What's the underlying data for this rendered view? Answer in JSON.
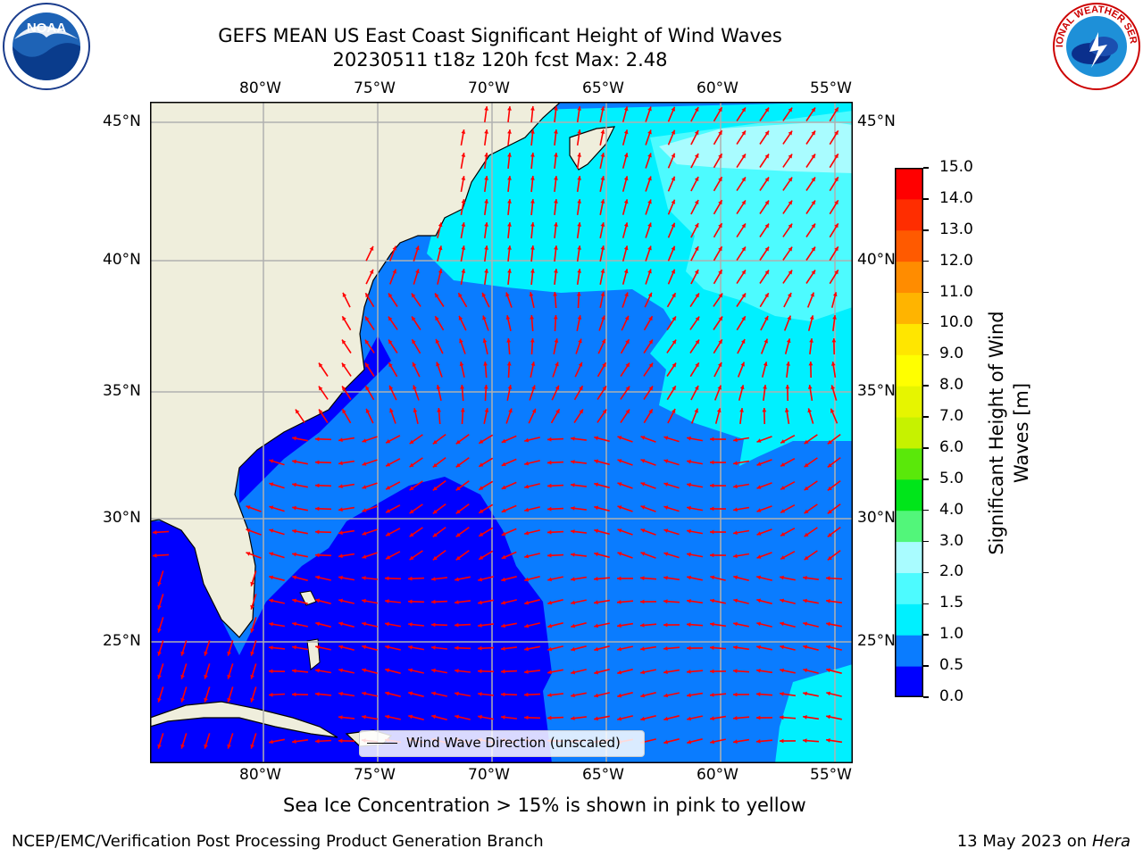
{
  "title": {
    "line1": "GEFS MEAN US East Coast Significant Height of Wind Waves",
    "line2": "20230511 t18z 120h fcst   Max: 2.48"
  },
  "logos": {
    "noaa_text": "NOAA",
    "nws_text": "NATIONAL WEATHER SERVICE"
  },
  "map": {
    "lon_labels": [
      "80°W",
      "75°W",
      "70°W",
      "65°W",
      "60°W",
      "55°W"
    ],
    "lat_labels": [
      "45°N",
      "40°N",
      "35°N",
      "30°N",
      "25°N"
    ],
    "lon_range": [
      "85°W",
      "54°W"
    ],
    "lat_range": [
      "20.5°N",
      "46°N"
    ],
    "legend_label": "Wind Wave Direction (unscaled)",
    "colors": {
      "land": "#efeedc",
      "grid": "#b0b0b0",
      "arrows": "#ff0000"
    }
  },
  "colorbar": {
    "label": "Significant Height of Wind Waves [m]",
    "ticks": [
      "0.0",
      "0.5",
      "1.0",
      "1.5",
      "2.0",
      "3.0",
      "4.0",
      "5.0",
      "6.0",
      "7.0",
      "8.0",
      "9.0",
      "10.0",
      "11.0",
      "12.0",
      "13.0",
      "14.0",
      "15.0"
    ],
    "colors": [
      "#0000ff",
      "#0a7cff",
      "#00f0ff",
      "#4dfbff",
      "#a9fcff",
      "#52f67a",
      "#00e51a",
      "#5ae80a",
      "#c6f200",
      "#e6f500",
      "#ffff00",
      "#ffe600",
      "#ffb400",
      "#ff8c00",
      "#ff5a00",
      "#ff2d00",
      "#ff0000"
    ]
  },
  "footer": {
    "note": "Sea Ice Concentration > 15% is shown in pink to yellow",
    "left": "NCEP/EMC/Verification Post Processing Product Generation Branch",
    "right_date": "13 May 2023 on",
    "right_host": "Hera"
  }
}
